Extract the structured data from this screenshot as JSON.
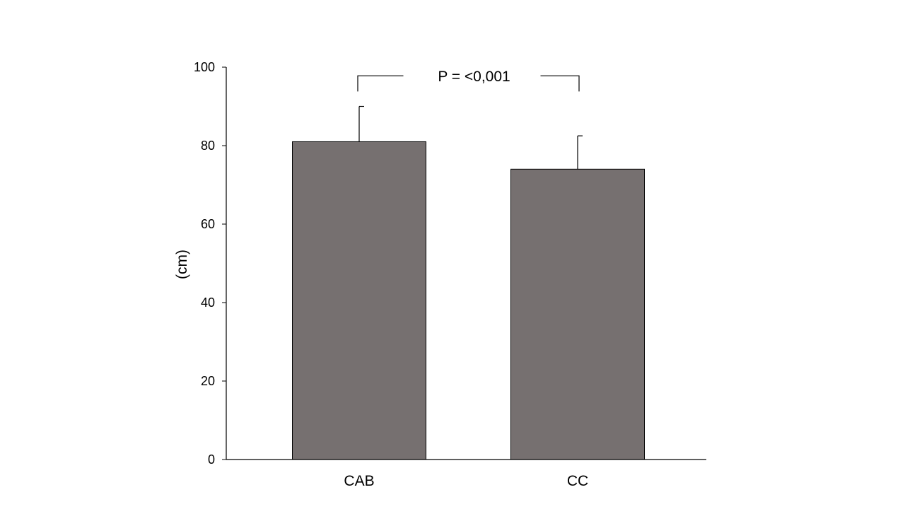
{
  "chart_data": {
    "type": "bar",
    "title": "",
    "xlabel": "",
    "ylabel": "(cm)",
    "categories": [
      "CAB",
      "CC"
    ],
    "values": [
      81,
      74
    ],
    "errors": [
      9,
      8.5
    ],
    "ylim": [
      0,
      100
    ],
    "yticks": [
      0,
      20,
      40,
      60,
      80,
      100
    ],
    "grid": false,
    "legend": "none",
    "bar_color": "#767070",
    "annotation": {
      "text": "P = <0,001",
      "between": [
        "CAB",
        "CC"
      ],
      "y": 97.8,
      "drop_to": 93.8
    }
  }
}
